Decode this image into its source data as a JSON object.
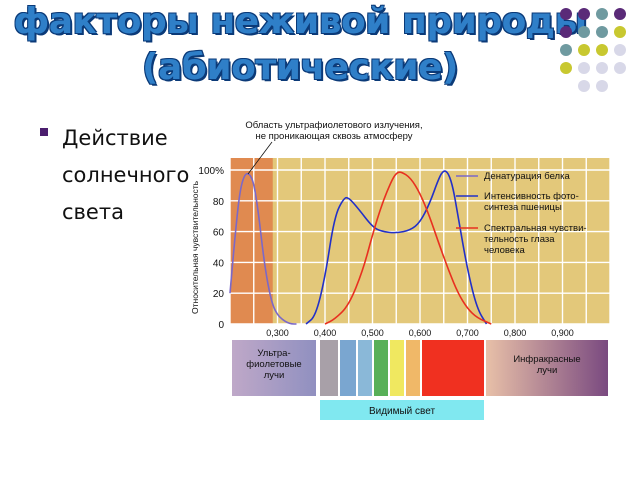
{
  "title_line1": "факторы неживой природы",
  "title_line2": "(абиотические)",
  "bullet_lines": [
    "Действие",
    "солнечного",
    "света"
  ],
  "colors": {
    "title": "#2f7fc8",
    "title_outline": "#0b3a78",
    "grid_bg": "#e3c87a",
    "uv_zone": "#e08a50",
    "protein": "#7b68c8",
    "photosynthesis": "#2230c8",
    "eye": "#e83020",
    "dots": [
      "#5a2a78",
      "#6f9aa0",
      "#c8c830",
      "#d8d8e8"
    ]
  },
  "annotation": "Область ультрафиолетового излучения,\nне проникающая сквозь атмосферу",
  "chart_data": {
    "type": "line",
    "title": "",
    "xlabel": "",
    "ylabel": "Относительная чувствительность",
    "y_ticks": [
      "0",
      "20",
      "40",
      "60",
      "80",
      "100%"
    ],
    "x_ticks": [
      "0,300",
      "0,400",
      "0,500",
      "0,600",
      "0,700",
      "0,800",
      "0,900"
    ],
    "xlim": [
      0.2,
      1.0
    ],
    "ylim": [
      0,
      100
    ],
    "uv_region": [
      0.2,
      0.29
    ],
    "series": [
      {
        "name": "Денатурация белка",
        "color_key": "protein",
        "x": [
          0.2,
          0.21,
          0.22,
          0.23,
          0.24,
          0.25,
          0.26,
          0.27,
          0.28,
          0.29,
          0.3,
          0.31,
          0.32,
          0.33,
          0.34
        ],
        "y": [
          20,
          55,
          85,
          97,
          98,
          92,
          72,
          45,
          25,
          12,
          6,
          3,
          1,
          0,
          0
        ]
      },
      {
        "name": "Интенсивность фото-синтеза пшеницы",
        "color_key": "photosynthesis",
        "x": [
          0.36,
          0.38,
          0.4,
          0.42,
          0.44,
          0.45,
          0.47,
          0.5,
          0.52,
          0.55,
          0.58,
          0.6,
          0.62,
          0.64,
          0.65,
          0.66,
          0.67,
          0.68,
          0.7,
          0.72,
          0.74
        ],
        "y": [
          0,
          5,
          30,
          70,
          82,
          82,
          75,
          63,
          60,
          59,
          61,
          66,
          78,
          95,
          100,
          98,
          88,
          70,
          35,
          10,
          0
        ]
      },
      {
        "name": "Спектральная чувстви-тельность глаза человека",
        "color_key": "eye",
        "x": [
          0.4,
          0.42,
          0.45,
          0.48,
          0.5,
          0.52,
          0.54,
          0.55,
          0.56,
          0.58,
          0.6,
          0.62,
          0.64,
          0.66,
          0.68,
          0.7,
          0.72,
          0.75
        ],
        "y": [
          0,
          3,
          12,
          35,
          58,
          78,
          93,
          98,
          99,
          95,
          85,
          70,
          52,
          35,
          20,
          10,
          4,
          0
        ]
      }
    ]
  },
  "spectrum": {
    "uv_label": "Ультра-\nфиолетовые\nлучи",
    "ir_label": "Инфракрасные\nлучи",
    "visible_label": "Видимый свет",
    "bands": [
      "#a8a0a8",
      "#7aa6d0",
      "#8ab8d8",
      "#58b058",
      "#f0e860",
      "#f0b868",
      "#f03020"
    ]
  }
}
